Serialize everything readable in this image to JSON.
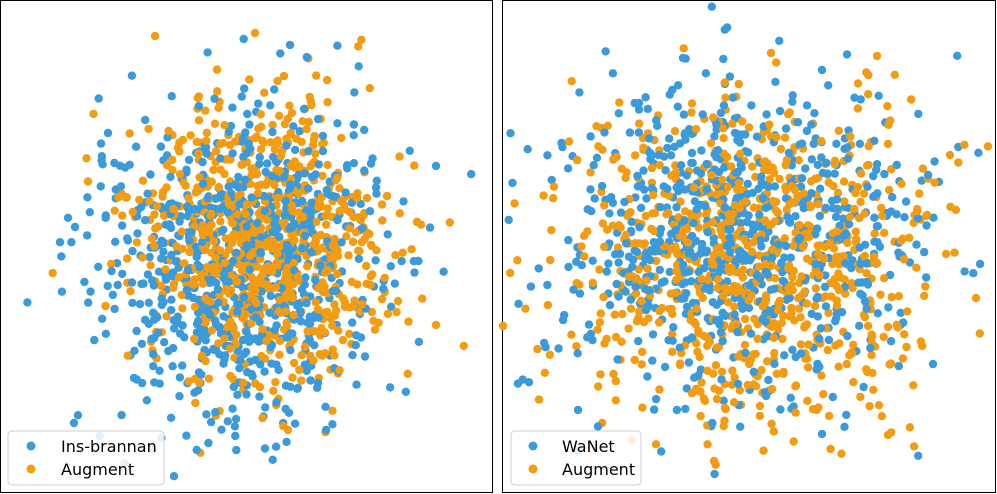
{
  "chart_data": [
    {
      "type": "scatter",
      "title": "",
      "xlabel": "",
      "ylabel": "",
      "axes_ticks": false,
      "grid": false,
      "legend_position": "lower-left",
      "series": [
        {
          "name": "Ins-brannan",
          "color": "#3b9ad9",
          "points": [
            [
              75,
              227
            ],
            [
              74,
              423
            ],
            [
              436,
              166
            ],
            [
              108,
              133
            ],
            [
              290,
              45
            ]
          ]
        },
        {
          "name": "Augment",
          "color": "#f39c12",
          "points": [
            [
              155,
              36
            ],
            [
              255,
              33
            ],
            [
              436,
              325
            ],
            [
              417,
              222
            ],
            [
              288,
              430
            ]
          ]
        }
      ],
      "dense_clusters": [
        {
          "series": 0,
          "n": 780,
          "cx": 245,
          "cy": 265,
          "sx": 70,
          "sy": 78
        },
        {
          "series": 1,
          "n": 820,
          "cx": 262,
          "cy": 242,
          "sx": 62,
          "sy": 72
        }
      ]
    },
    {
      "type": "scatter",
      "title": "",
      "xlabel": "",
      "ylabel": "",
      "axes_ticks": false,
      "grid": false,
      "legend_position": "lower-left",
      "series": [
        {
          "name": "WaNet",
          "color": "#3b9ad9",
          "points": [
            [
              683,
              58
            ],
            [
              822,
              70
            ],
            [
              822,
              434
            ],
            [
              578,
              410
            ],
            [
              639,
              103
            ]
          ]
        },
        {
          "name": "Augment",
          "color": "#f39c12",
          "points": [
            [
              771,
              53
            ],
            [
              877,
              56
            ],
            [
              714,
              461
            ],
            [
              503,
              326
            ],
            [
              950,
              155
            ]
          ]
        }
      ],
      "dense_clusters": [
        {
          "series": 0,
          "n": 760,
          "cx": 740,
          "cy": 238,
          "sx": 95,
          "sy": 78
        },
        {
          "series": 1,
          "n": 800,
          "cx": 752,
          "cy": 260,
          "sx": 98,
          "sy": 80
        }
      ]
    }
  ]
}
